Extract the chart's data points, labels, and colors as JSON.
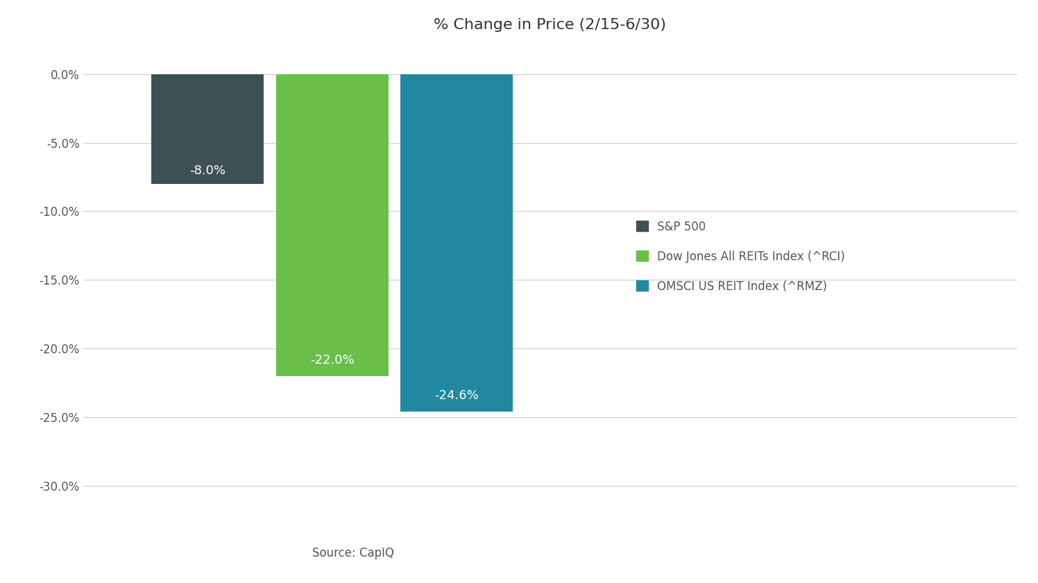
{
  "title": "% Change in Price (2/15-6/30)",
  "categories": [
    "S&P 500",
    "Dow Jones All REITs Index (^RCI)",
    "OMSCI US REIT Index (^RMZ)"
  ],
  "values": [
    -8.0,
    -22.0,
    -24.6
  ],
  "bar_colors": [
    "#3d5055",
    "#6abf4b",
    "#2188a0"
  ],
  "bar_labels": [
    "-8.0%",
    "-22.0%",
    "-24.6%"
  ],
  "label_color": "#ffffff",
  "ylabel_ticks": [
    0.0,
    -5.0,
    -10.0,
    -15.0,
    -20.0,
    -25.0,
    -30.0
  ],
  "ylim": [
    -32.0,
    2.0
  ],
  "source_text": "Source: CapIQ",
  "background_color": "#ffffff",
  "grid_color": "#cccccc",
  "tick_label_color": "#555555",
  "legend_labels": [
    "S&P 500",
    "Dow Jones All REITs Index (^RCI)",
    "OMSCI US REIT Index (^RMZ)"
  ],
  "title_fontsize": 16,
  "tick_fontsize": 12,
  "label_fontsize": 13,
  "source_fontsize": 12,
  "bar_width": 0.9,
  "bar_positions": [
    1.0,
    2.0,
    3.0
  ],
  "xlim": [
    0.0,
    7.5
  ]
}
